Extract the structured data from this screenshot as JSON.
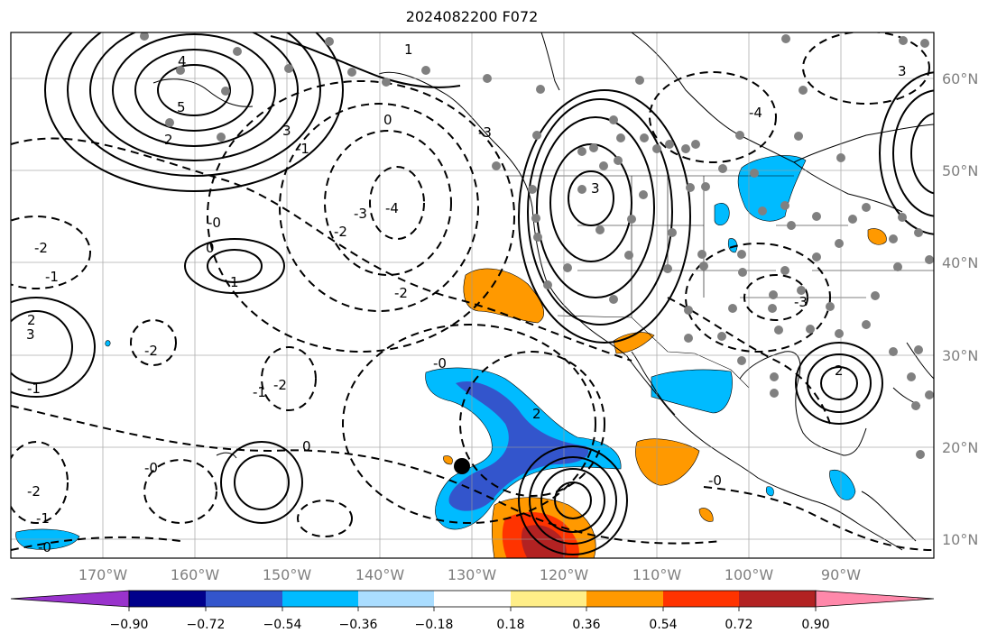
{
  "title": "2024082200 F072",
  "map": {
    "lon_ticks": [
      "170°W",
      "160°W",
      "150°W",
      "140°W",
      "130°W",
      "120°W",
      "110°W",
      "100°W",
      "90°W"
    ],
    "lat_ticks": [
      "60°N",
      "50°N",
      "40°N",
      "30°N",
      "20°N",
      "10°N"
    ],
    "contour_labels": [
      "4",
      "5",
      "3",
      "2",
      "0",
      "1",
      "-1",
      "-2",
      "-3",
      "-4",
      "-0",
      "3",
      "2",
      "1",
      "-2",
      "0",
      "-1",
      "-2",
      "2",
      "3",
      "-1",
      "-0",
      "-2",
      "-3",
      "0",
      "-1",
      "-2",
      "-0",
      "-1",
      "-0",
      "-2",
      "-3",
      "2",
      "-4",
      "3",
      "-0"
    ]
  },
  "colorbar": {
    "tick_labels": [
      "−0.90",
      "−0.72",
      "−0.54",
      "−0.36",
      "−0.18",
      "0.18",
      "0.36",
      "0.54",
      "0.72",
      "0.90"
    ],
    "colors": [
      "#9933cc",
      "#00008b",
      "#3355cc",
      "#00bbff",
      "#aaddff",
      "#ffffff",
      "#ffee88",
      "#ff9900",
      "#ff3300",
      "#b22222",
      "#ff88aa"
    ]
  }
}
